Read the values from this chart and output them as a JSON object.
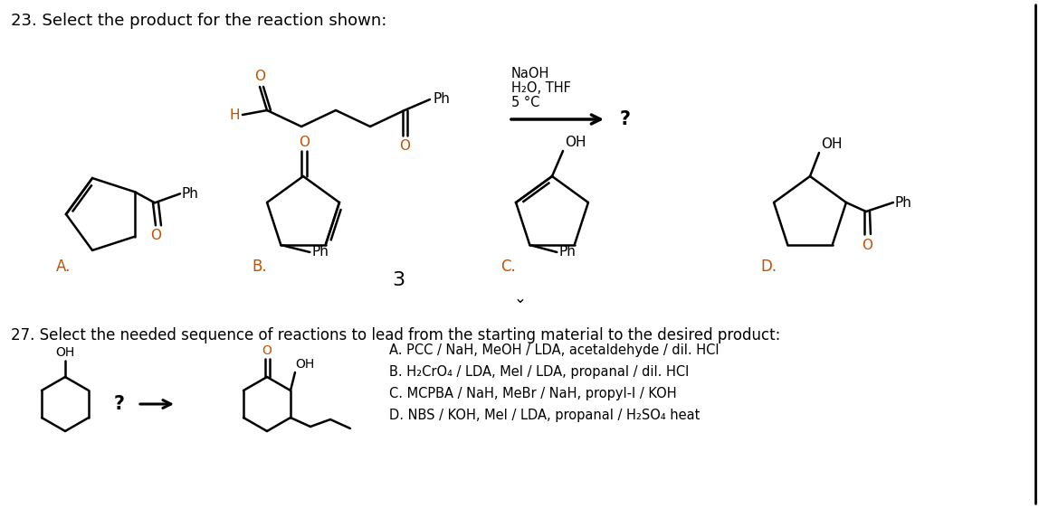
{
  "background_color": "#ffffff",
  "title_q23": "23. Select the product for the reaction shown:",
  "title_q27": "27. Select the needed sequence of reactions to lead from the starting material to the desired product:",
  "reagents_line1": "NaOH",
  "reagents_line2": "H₂O, THF",
  "reagents_line3": "5 °C",
  "question_mark": "?",
  "label_3": "3",
  "label_A": "A.",
  "label_B": "B.",
  "label_C": "C.",
  "label_D": "D.",
  "label_Ph": "Ph",
  "label_O": "O",
  "label_OH": "OH",
  "label_H": "H",
  "answers_q27": [
    "A. PCC / NaH, MeOH / LDA, acetaldehyde / dil. HCl",
    "B. H₂CrO₄ / LDA, MeI / LDA, propanal / dil. HCl",
    "C. MCPBA / NaH, MeBr / NaH, propyl-I / KOH",
    "D. NBS / KOH, MeI / LDA, propanal / H₂SO₄ heat"
  ],
  "font_size_title": 13,
  "font_size_label": 12,
  "font_size_text": 11,
  "font_size_atom": 11,
  "text_color": "#000000",
  "accent_color": "#c45000",
  "line_color": "#000000",
  "line_width": 1.8
}
